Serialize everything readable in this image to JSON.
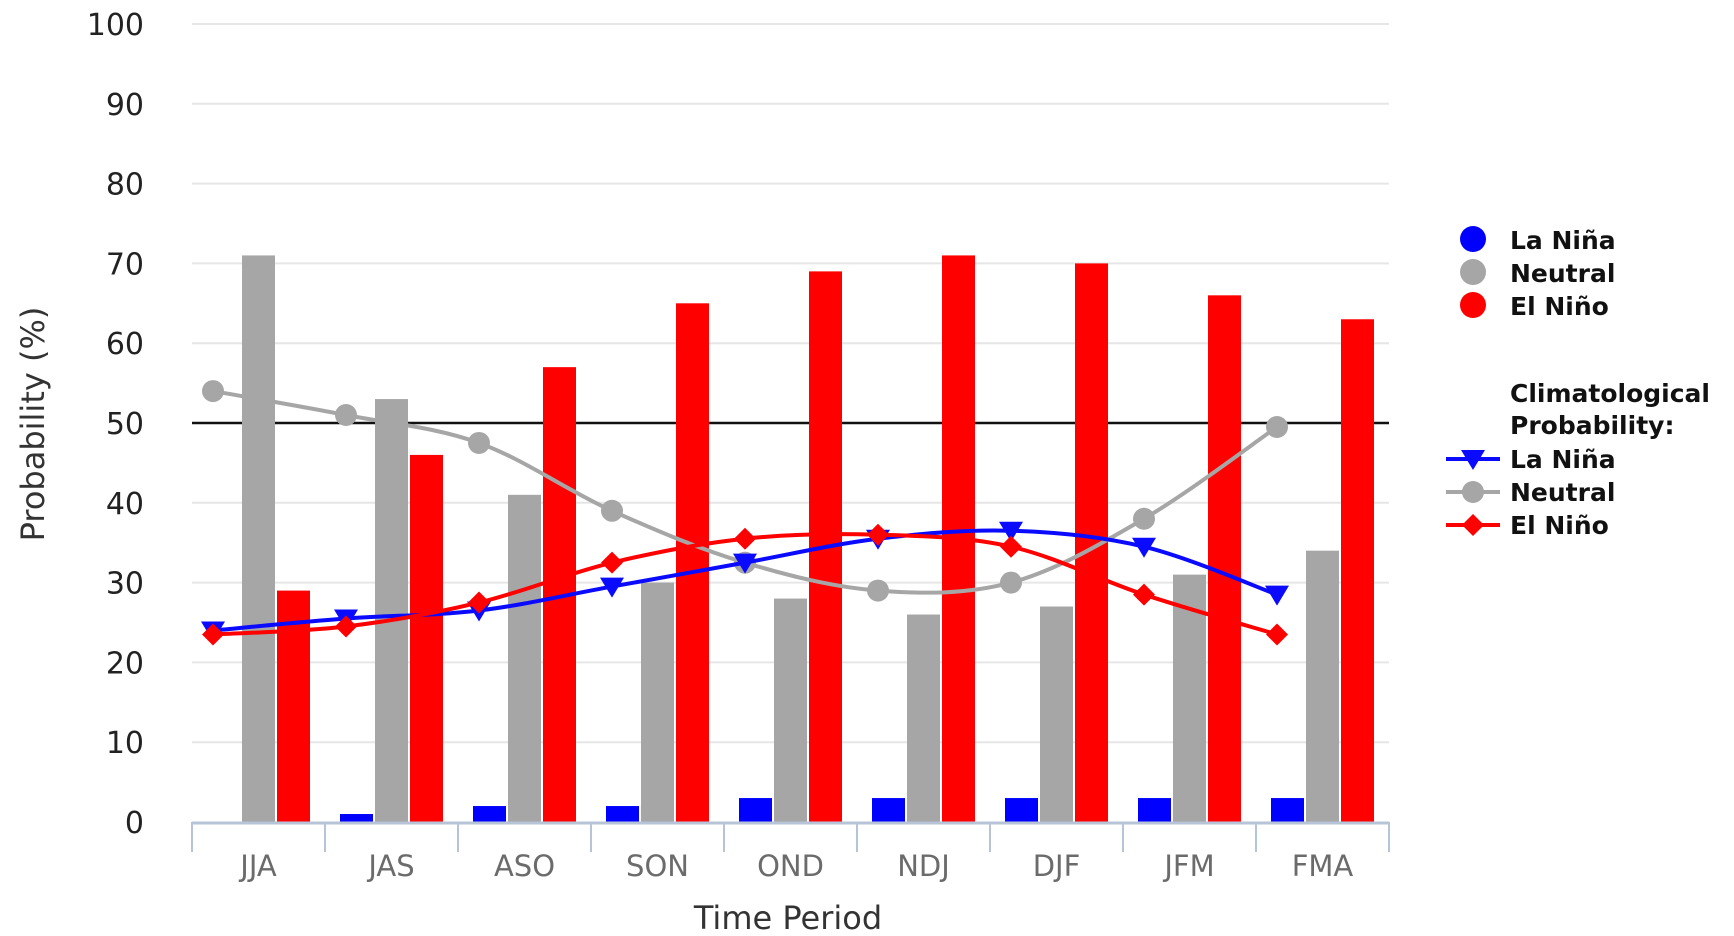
{
  "chart_data": {
    "type": "bar",
    "categories": [
      "JJA",
      "JAS",
      "ASO",
      "SON",
      "OND",
      "NDJ",
      "DJF",
      "JFM",
      "FMA"
    ],
    "xlabel": "Time Period",
    "ylabel": "Probability (%)",
    "ylim": [
      0,
      100
    ],
    "yticks": [
      0,
      10,
      20,
      30,
      40,
      50,
      60,
      70,
      80,
      90,
      100
    ],
    "grid": true,
    "reference_line": 50,
    "legend_position": "right",
    "series": [
      {
        "name": "La Niña",
        "kind": "bar",
        "color": "#0000ff",
        "values": [
          0,
          1,
          2,
          2,
          3,
          3,
          3,
          3,
          3
        ]
      },
      {
        "name": "Neutral",
        "kind": "bar",
        "color": "#a6a6a6",
        "values": [
          71,
          53,
          41,
          30,
          28,
          26,
          27,
          31,
          34
        ]
      },
      {
        "name": "El Niño",
        "kind": "bar",
        "color": "#ff0000",
        "values": [
          29,
          46,
          57,
          65,
          69,
          71,
          70,
          66,
          63
        ]
      }
    ],
    "climatology_title": "Climatological Probability:",
    "climatology": [
      {
        "name": "La Niña",
        "kind": "line",
        "marker": "triangle-down",
        "color": "#0a0aff",
        "values": [
          24,
          25.5,
          26.5,
          29.5,
          32.5,
          35.5,
          36.5,
          34.5,
          28.5
        ]
      },
      {
        "name": "Neutral",
        "kind": "line",
        "marker": "circle",
        "color": "#a6a6a6",
        "values": [
          54,
          51,
          47.5,
          39,
          32.5,
          29,
          30,
          38,
          49.5
        ]
      },
      {
        "name": "El Niño",
        "kind": "line",
        "marker": "diamond",
        "color": "#ff0000",
        "values": [
          23.5,
          24.5,
          27.5,
          32.5,
          35.5,
          36,
          34.5,
          28.5,
          23.5
        ]
      }
    ]
  }
}
